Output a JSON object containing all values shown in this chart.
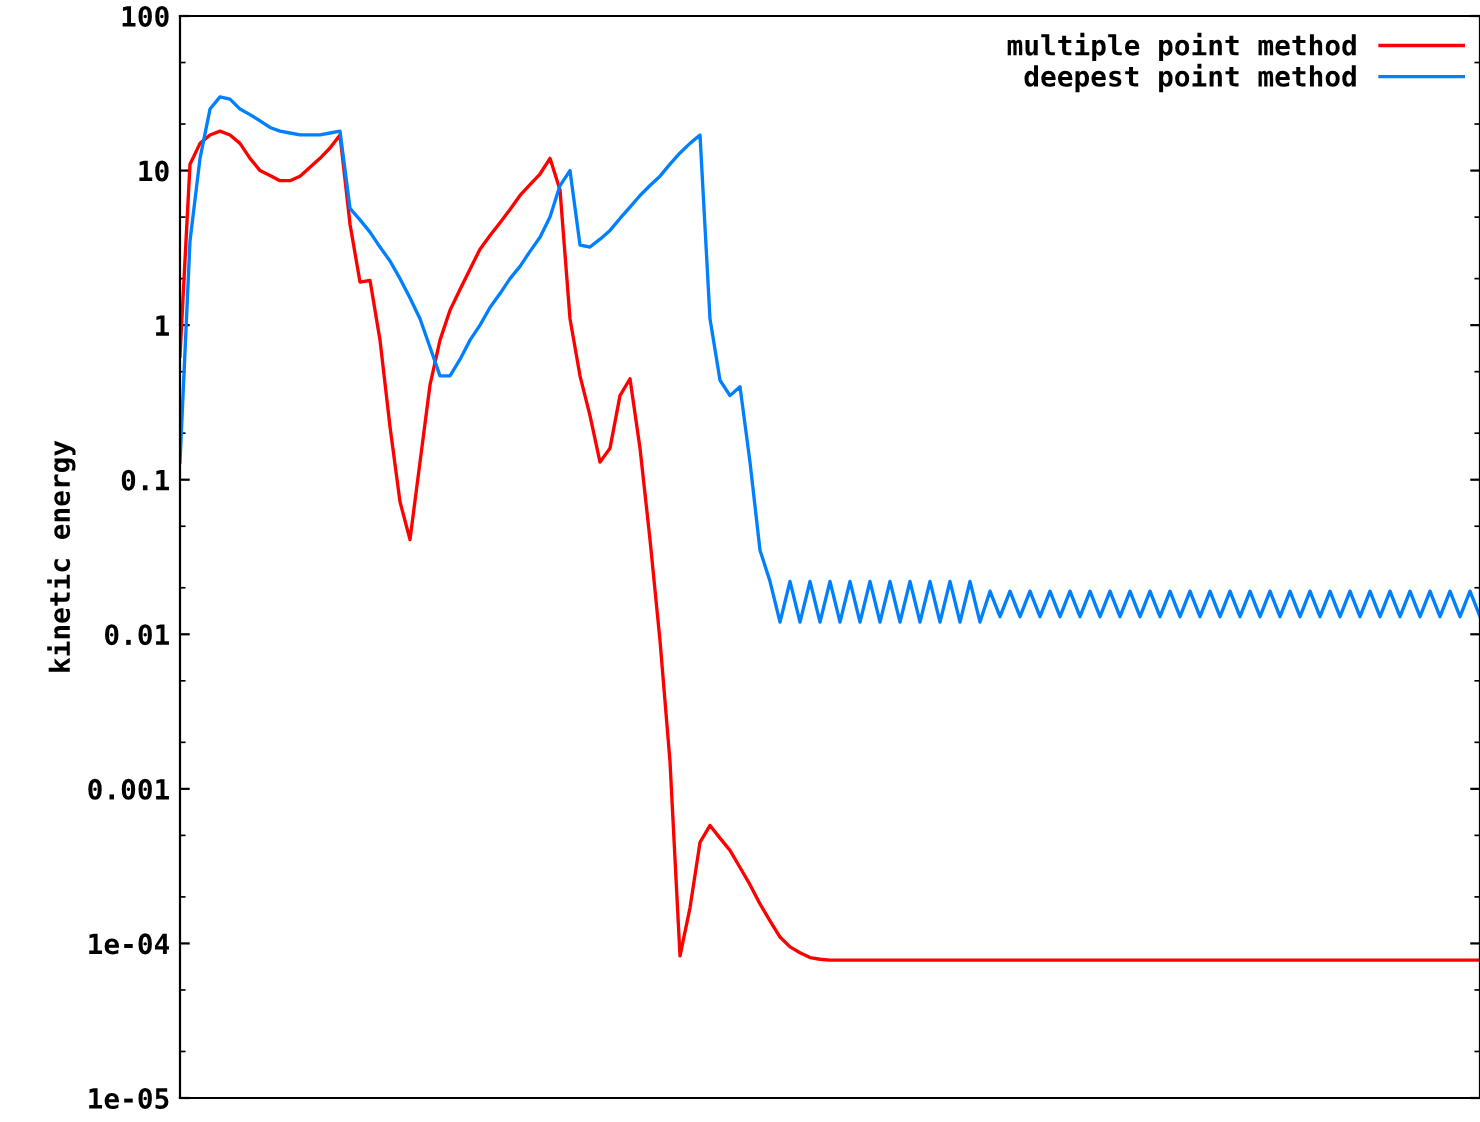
{
  "chart_data": {
    "type": "line",
    "ylabel": "kinetic energy",
    "log": "y",
    "ylim": [
      1e-05,
      100
    ],
    "yticks": [
      {
        "value": 1e-05,
        "label": "1e-05"
      },
      {
        "value": 0.0001,
        "label": "1e-04"
      },
      0.001,
      0.01,
      0.1,
      1,
      10,
      100
    ],
    "tick_labels": "y",
    "grid": false,
    "legend": "top right",
    "marker": "none",
    "line_style": "solid",
    "categories": [
      null,
      null,
      null,
      null,
      null,
      null,
      null,
      null,
      null,
      null,
      null,
      null,
      null,
      null,
      null,
      null,
      null,
      null,
      null,
      null,
      null,
      null,
      null,
      null,
      null,
      null,
      null,
      null,
      null,
      null,
      null,
      null,
      null,
      null,
      null,
      null,
      null,
      null,
      null,
      null,
      null,
      null,
      null,
      null,
      null,
      null,
      null,
      null,
      null,
      null,
      null,
      null,
      null,
      null,
      null,
      null,
      null,
      null,
      null,
      null,
      null,
      null,
      null,
      null,
      null,
      null,
      null,
      null,
      null,
      null,
      null,
      null,
      null,
      null,
      null,
      null,
      null,
      null,
      null,
      null,
      null,
      null,
      null,
      null,
      null,
      null,
      null,
      null,
      null,
      null,
      null,
      null,
      null,
      null,
      null,
      null,
      null,
      null,
      null,
      null,
      null,
      null,
      null,
      null,
      null,
      null,
      null,
      null,
      null,
      null,
      null,
      null,
      null,
      null,
      null,
      null,
      null,
      null,
      null,
      null,
      null,
      null,
      null,
      null,
      null,
      null,
      null,
      null,
      null,
      null,
      null
    ],
    "series": [
      {
        "name": "multiple point method",
        "color": "#ff0000",
        "values": [
          0.63,
          11,
          15,
          17,
          18,
          17,
          15,
          12,
          10,
          9.3,
          8.6,
          8.6,
          9.2,
          10.5,
          12,
          14,
          17,
          4.5,
          1.9,
          1.95,
          0.8,
          0.22,
          0.072,
          0.041,
          0.13,
          0.41,
          0.8,
          1.25,
          1.7,
          2.3,
          3.1,
          3.8,
          4.6,
          5.6,
          6.9,
          8.1,
          9.5,
          12,
          7.5,
          1.1,
          0.47,
          0.26,
          0.13,
          0.16,
          0.35,
          0.45,
          0.16,
          0.041,
          0.0091,
          0.0015,
          8.3e-05,
          0.00017,
          0.00045,
          0.00058,
          0.00048,
          0.0004,
          0.00031,
          0.00024,
          0.00018,
          0.00014,
          0.00011,
          9.5e-05,
          8.7e-05,
          8.1e-05,
          7.9e-05,
          7.8e-05,
          7.8e-05,
          7.8e-05,
          7.8e-05,
          7.8e-05,
          7.8e-05,
          7.8e-05,
          7.8e-05,
          7.8e-05,
          7.8e-05,
          7.8e-05,
          7.8e-05,
          7.8e-05,
          7.8e-05,
          7.8e-05,
          7.8e-05,
          7.8e-05,
          7.8e-05,
          7.8e-05,
          7.8e-05,
          7.8e-05,
          7.8e-05,
          7.8e-05,
          7.8e-05,
          7.8e-05,
          7.8e-05,
          7.8e-05,
          7.8e-05,
          7.8e-05,
          7.8e-05,
          7.8e-05,
          7.8e-05,
          7.8e-05,
          7.8e-05,
          7.8e-05,
          7.8e-05,
          7.8e-05,
          7.8e-05,
          7.8e-05,
          7.8e-05,
          7.8e-05,
          7.8e-05,
          7.8e-05,
          7.8e-05,
          7.8e-05,
          7.8e-05,
          7.8e-05,
          7.8e-05,
          7.8e-05,
          7.8e-05,
          7.8e-05,
          7.8e-05,
          7.8e-05,
          7.8e-05,
          7.8e-05,
          7.8e-05,
          7.8e-05,
          7.8e-05,
          7.8e-05,
          7.8e-05,
          7.8e-05,
          7.8e-05,
          7.8e-05,
          7.8e-05,
          7.8e-05,
          7.8e-05
        ]
      },
      {
        "name": "deepest point method",
        "color": "#0080ff",
        "values": [
          0.13,
          3.5,
          12,
          25,
          30,
          29,
          25,
          23,
          21,
          19,
          18,
          17.5,
          17,
          17,
          17,
          17.5,
          18,
          5.7,
          4.8,
          4.0,
          3.2,
          2.6,
          2.0,
          1.5,
          1.1,
          0.72,
          0.47,
          0.47,
          0.6,
          0.8,
          1.0,
          1.3,
          1.6,
          2.0,
          2.4,
          3.0,
          3.7,
          5.0,
          8.0,
          10,
          3.3,
          3.2,
          3.6,
          4.1,
          4.9,
          5.8,
          6.9,
          8.0,
          9.2,
          11,
          13,
          15,
          17,
          1.1,
          0.44,
          0.35,
          0.4,
          0.13,
          0.035,
          0.022,
          0.012,
          0.022,
          0.012,
          0.022,
          0.012,
          0.022,
          0.012,
          0.022,
          0.012,
          0.022,
          0.012,
          0.022,
          0.012,
          0.022,
          0.012,
          0.022,
          0.012,
          0.022,
          0.012,
          0.022,
          0.012,
          0.019,
          0.013,
          0.019,
          0.013,
          0.019,
          0.013,
          0.019,
          0.013,
          0.019,
          0.013,
          0.019,
          0.013,
          0.019,
          0.013,
          0.019,
          0.013,
          0.019,
          0.013,
          0.019,
          0.013,
          0.019,
          0.013,
          0.019,
          0.013,
          0.019,
          0.013,
          0.019,
          0.013,
          0.019,
          0.013,
          0.019,
          0.013,
          0.019,
          0.013,
          0.019,
          0.013,
          0.019,
          0.013,
          0.019,
          0.013,
          0.019,
          0.013,
          0.019,
          0.013,
          0.019,
          0.013,
          0.019,
          0.013,
          0.019,
          0.013
        ]
      }
    ]
  }
}
